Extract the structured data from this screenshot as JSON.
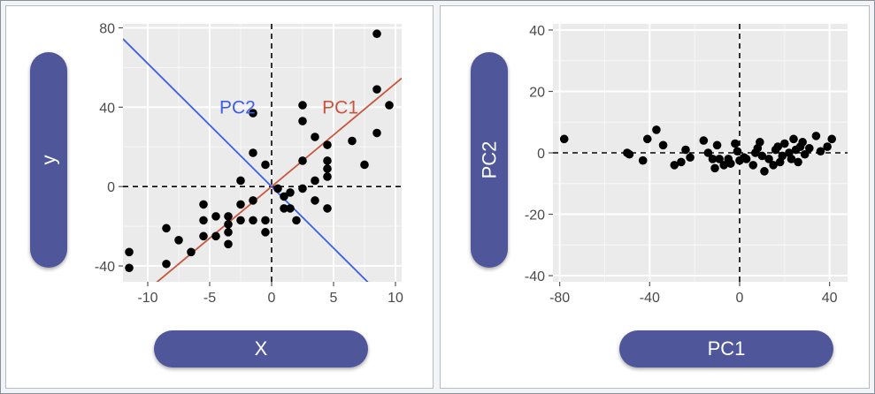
{
  "chart_data": [
    {
      "type": "scatter",
      "title": "",
      "xlabel": "X",
      "ylabel": "y",
      "xlim": [
        -12,
        10.5
      ],
      "ylim": [
        -48,
        82
      ],
      "x_ticks": [
        -10,
        -5,
        0,
        5,
        10
      ],
      "y_ticks": [
        -40,
        0,
        40,
        80
      ],
      "grid": true,
      "reference_lines": {
        "x": 0,
        "y": 0,
        "style": "dashed"
      },
      "lines": [
        {
          "name": "PC1",
          "color": "#c8553d",
          "intercept": 0,
          "slope": 5.2
        },
        {
          "name": "PC2",
          "color": "#3c5ee8",
          "intercept": 0,
          "slope": -6.2
        }
      ],
      "series": [
        {
          "color": "#000000",
          "points": [
            [
              -11.5,
              -33
            ],
            [
              -11.5,
              -41
            ],
            [
              -8.5,
              -21
            ],
            [
              -8.5,
              -39
            ],
            [
              -7.5,
              -27
            ],
            [
              -6.5,
              -33
            ],
            [
              -5.5,
              -9
            ],
            [
              -5.5,
              -17
            ],
            [
              -5.5,
              -25
            ],
            [
              -4.5,
              -15
            ],
            [
              -4.5,
              -25
            ],
            [
              -3.5,
              -15
            ],
            [
              -3.5,
              -19
            ],
            [
              -3.5,
              -23
            ],
            [
              -3.5,
              -29
            ],
            [
              -2.5,
              -9
            ],
            [
              -2.5,
              -17
            ],
            [
              -2.5,
              3
            ],
            [
              -1.5,
              -17
            ],
            [
              -1.5,
              -7
            ],
            [
              -1.5,
              17
            ],
            [
              -1.5,
              37
            ],
            [
              -0.5,
              -17
            ],
            [
              -0.5,
              -23
            ],
            [
              -0.5,
              11
            ],
            [
              0.5,
              -1
            ],
            [
              1,
              -5
            ],
            [
              1,
              -11
            ],
            [
              1.5,
              -3
            ],
            [
              1.5,
              -11
            ],
            [
              2,
              -17
            ],
            [
              2.5,
              -1
            ],
            [
              2.5,
              13
            ],
            [
              2.5,
              33
            ],
            [
              2.5,
              41
            ],
            [
              3.5,
              3
            ],
            [
              3.5,
              -7
            ],
            [
              3.5,
              25
            ],
            [
              4.5,
              5
            ],
            [
              4.5,
              9
            ],
            [
              4.5,
              13
            ],
            [
              4.5,
              21
            ],
            [
              4.5,
              -11
            ],
            [
              6.5,
              23
            ],
            [
              7.5,
              11
            ],
            [
              8.5,
              27
            ],
            [
              8.5,
              49
            ],
            [
              8.5,
              77
            ],
            [
              9.5,
              41
            ]
          ]
        }
      ]
    },
    {
      "type": "scatter",
      "title": "",
      "xlabel": "PC1",
      "ylabel": "PC2",
      "xlim": [
        -83,
        48
      ],
      "ylim": [
        -42,
        42
      ],
      "x_ticks": [
        -80,
        -40,
        0,
        40
      ],
      "y_ticks": [
        -40,
        -20,
        0,
        20,
        40
      ],
      "grid": true,
      "reference_lines": {
        "x": 0,
        "y": 0,
        "style": "dashed"
      },
      "series": [
        {
          "color": "#000000",
          "points": [
            [
              -78,
              4.5
            ],
            [
              -50,
              0
            ],
            [
              -49,
              -0.5
            ],
            [
              -43,
              -2.5
            ],
            [
              -41,
              4.5
            ],
            [
              -37,
              7.5
            ],
            [
              -34,
              2.5
            ],
            [
              -29,
              -4
            ],
            [
              -26,
              -3
            ],
            [
              -24,
              1
            ],
            [
              -22,
              -1.5
            ],
            [
              -16,
              4
            ],
            [
              -14,
              0
            ],
            [
              -12,
              -2
            ],
            [
              -11,
              -5
            ],
            [
              -10,
              2.5
            ],
            [
              -9,
              -2
            ],
            [
              -7,
              -4
            ],
            [
              -5,
              -2
            ],
            [
              -4,
              -3.5
            ],
            [
              -2,
              3
            ],
            [
              -1,
              0.5
            ],
            [
              0,
              -2.5
            ],
            [
              2,
              -1.5
            ],
            [
              3,
              -2
            ],
            [
              6,
              -4
            ],
            [
              7,
              0
            ],
            [
              8,
              1.5
            ],
            [
              9,
              3.5
            ],
            [
              10,
              -1
            ],
            [
              11,
              -6
            ],
            [
              13,
              -2
            ],
            [
              15,
              -4
            ],
            [
              16,
              1
            ],
            [
              17,
              2
            ],
            [
              18,
              -3
            ],
            [
              19,
              -1
            ],
            [
              20,
              3
            ],
            [
              22,
              0
            ],
            [
              23,
              -2
            ],
            [
              24,
              4.5
            ],
            [
              25,
              1
            ],
            [
              26,
              -3
            ],
            [
              27,
              2
            ],
            [
              28,
              3.5
            ],
            [
              29,
              -0.5
            ],
            [
              31,
              1.5
            ],
            [
              34,
              5.5
            ],
            [
              36,
              0.5
            ],
            [
              39,
              2
            ],
            [
              41,
              4.5
            ]
          ]
        }
      ]
    }
  ]
}
